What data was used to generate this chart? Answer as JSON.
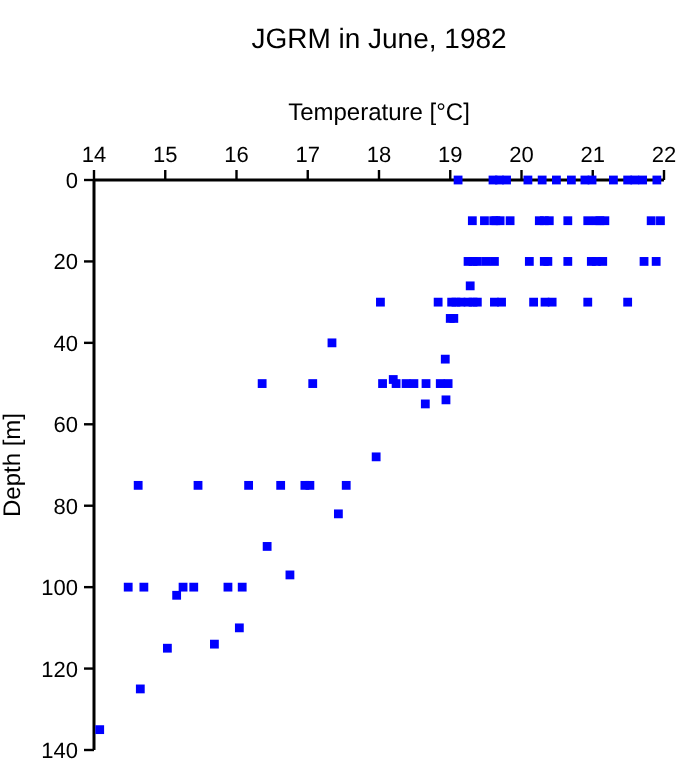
{
  "chart_data": {
    "type": "scatter",
    "title": "JGRM in June, 1982",
    "xlabel": "Temperature [°C]",
    "ylabel": "Depth [m]",
    "xlim": [
      14,
      22
    ],
    "xticks": [
      14,
      15,
      16,
      17,
      18,
      19,
      20,
      21,
      22
    ],
    "ylim": [
      140,
      0
    ],
    "yticks": [
      0,
      20,
      40,
      60,
      80,
      100,
      120,
      140
    ],
    "grid": false,
    "marker": "square",
    "series": [
      {
        "color": "#0000ff",
        "x": [
          19.11,
          19.6,
          19.69,
          19.79,
          20.09,
          20.29,
          20.49,
          20.7,
          20.89,
          20.99,
          21.29,
          21.49,
          21.59,
          21.7,
          21.9,
          19.31,
          19.48,
          19.61,
          19.64,
          19.7,
          19.84,
          20.25,
          20.32,
          20.39,
          20.65,
          20.93,
          21.05,
          21.1,
          21.17,
          21.82,
          21.95,
          19.25,
          19.32,
          19.38,
          19.5,
          19.62,
          20.11,
          20.32,
          20.37,
          20.65,
          20.98,
          21.05,
          21.14,
          21.72,
          21.89,
          19.28,
          18.02,
          18.83,
          19.02,
          19.08,
          19.15,
          19.25,
          19.32,
          19.38,
          19.62,
          19.72,
          20.17,
          20.33,
          20.43,
          20.93,
          21.49,
          19.0,
          19.05,
          17.34,
          18.93,
          16.36,
          17.07,
          18.05,
          18.2,
          18.24,
          18.38,
          18.49,
          18.66,
          18.86,
          18.97,
          18.65,
          18.94,
          17.96,
          14.62,
          15.46,
          16.17,
          16.62,
          16.96,
          17.03,
          17.54,
          17.43,
          16.43,
          16.75,
          14.48,
          14.7,
          15.25,
          15.4,
          15.88,
          16.08,
          15.16,
          16.04,
          15.03,
          15.69,
          14.65,
          14.08
        ],
        "values": [
          0,
          0,
          0,
          0,
          0,
          0,
          0,
          0,
          0,
          0,
          0,
          0,
          0,
          0,
          0,
          10,
          10,
          10,
          10,
          10,
          10,
          10,
          10,
          10,
          10,
          10,
          10,
          10,
          10,
          10,
          10,
          20,
          20,
          20,
          20,
          20,
          20,
          20,
          20,
          20,
          20,
          20,
          20,
          20,
          20,
          26,
          30,
          30,
          30,
          30,
          30,
          30,
          30,
          30,
          30,
          30,
          30,
          30,
          30,
          30,
          30,
          34,
          34,
          40,
          44,
          50,
          50,
          50,
          49,
          50,
          50,
          50,
          50,
          50,
          50,
          55,
          54,
          68,
          75,
          75,
          75,
          75,
          75,
          75,
          75,
          82,
          90,
          97,
          100,
          100,
          100,
          100,
          100,
          100,
          102,
          110,
          115,
          114,
          125,
          135
        ]
      }
    ]
  }
}
